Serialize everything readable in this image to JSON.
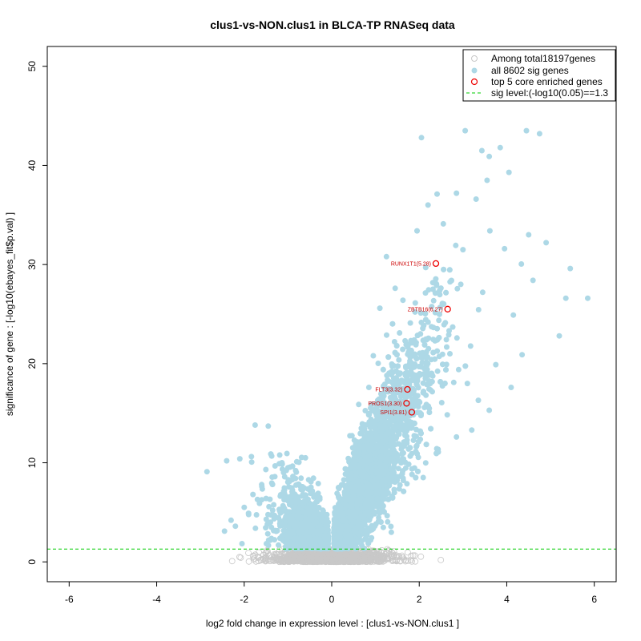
{
  "chart_data": {
    "type": "scatter",
    "title": "clus1-vs-NON.clus1 in BLCA-TP RNASeq data",
    "xlabel": "log2 fold change in expression level : [clus1-vs-NON.clus1 ]",
    "ylabel": "significance of gene : [-log10(ebayes_fit$p.val) ]",
    "xlim": [
      -6.5,
      6.5
    ],
    "ylim": [
      -2,
      52
    ],
    "x_ticks": [
      -6,
      -4,
      -2,
      0,
      2,
      4,
      6
    ],
    "y_ticks": [
      0,
      10,
      20,
      30,
      40,
      50
    ],
    "sig_level": 1.3,
    "legend": {
      "placement": "top-right",
      "entries": [
        {
          "label": "Among total18197genes",
          "marker": "open-circle",
          "color": "#c8c8c8"
        },
        {
          "label": "all 8602 sig genes",
          "marker": "filled-circle",
          "color": "#add8e6"
        },
        {
          "label": "top 5 core enriched genes",
          "marker": "open-circle",
          "color": "#ee0000"
        },
        {
          "label": "sig level:(-log10(0.05)==1.3",
          "marker": "dashed-line",
          "color": "#00cc00"
        }
      ]
    },
    "colors": {
      "nonsig": "#c8c8c8",
      "sig": "#add8e6",
      "core": "#ee0000",
      "threshold": "#00cc00"
    },
    "core_genes": [
      {
        "label": "RUNX1T1(5.28)",
        "x": 2.38,
        "y": 30.1
      },
      {
        "label": "ZBTB16(6.27)",
        "x": 2.65,
        "y": 25.5
      },
      {
        "label": "FLT3(3.32)",
        "x": 1.73,
        "y": 17.4
      },
      {
        "label": "PROS1(3.30)",
        "x": 1.71,
        "y": 16.0
      },
      {
        "label": "SPI1(3.81)",
        "x": 1.83,
        "y": 15.1
      }
    ],
    "sig_points": [
      [
        -2.85,
        9.1
      ],
      [
        -2.4,
        10.2
      ],
      [
        -2.1,
        10.4
      ],
      [
        -1.75,
        13.8
      ],
      [
        -1.45,
        13.7
      ],
      [
        -2.3,
        4.2
      ],
      [
        -2.2,
        3.6
      ],
      [
        -2.0,
        5.5
      ],
      [
        -1.9,
        4.9
      ],
      [
        -1.8,
        6.8
      ],
      [
        -1.6,
        7.8
      ],
      [
        -1.5,
        6.4
      ],
      [
        -1.3,
        8.6
      ],
      [
        -1.2,
        9.9
      ],
      [
        -1.1,
        7.1
      ],
      [
        -1.0,
        9.5
      ],
      [
        -0.9,
        8.3
      ],
      [
        -0.8,
        10.1
      ],
      [
        -0.7,
        7.6
      ],
      [
        -0.6,
        10.5
      ],
      [
        -2.45,
        3.1
      ],
      [
        -1.65,
        5.9
      ],
      [
        -1.35,
        5.2
      ],
      [
        -0.95,
        6.3
      ],
      [
        -0.75,
        5.0
      ],
      [
        4.45,
        43.5
      ],
      [
        4.75,
        43.2
      ],
      [
        3.05,
        43.5
      ],
      [
        2.05,
        42.8
      ],
      [
        3.85,
        41.8
      ],
      [
        3.6,
        40.9
      ],
      [
        4.05,
        39.3
      ],
      [
        3.55,
        38.5
      ],
      [
        3.3,
        36.6
      ],
      [
        2.85,
        37.2
      ],
      [
        4.9,
        32.2
      ],
      [
        5.45,
        29.6
      ],
      [
        5.85,
        26.6
      ],
      [
        5.35,
        26.6
      ],
      [
        5.2,
        22.8
      ],
      [
        4.35,
        20.9
      ],
      [
        4.15,
        24.9
      ],
      [
        4.6,
        28.4
      ],
      [
        3.95,
        31.6
      ],
      [
        4.5,
        33.0
      ],
      [
        2.45,
        22.6
      ],
      [
        2.7,
        21.0
      ],
      [
        2.9,
        19.4
      ],
      [
        3.1,
        18.0
      ],
      [
        3.35,
        16.3
      ],
      [
        3.6,
        15.3
      ],
      [
        3.75,
        19.9
      ],
      [
        4.1,
        17.6
      ],
      [
        3.2,
        13.3
      ],
      [
        2.85,
        12.6
      ],
      [
        1.25,
        30.8
      ],
      [
        1.1,
        25.6
      ],
      [
        0.95,
        20.8
      ],
      [
        0.85,
        17.6
      ],
      [
        0.75,
        13.4
      ],
      [
        0.55,
        10.2
      ],
      [
        0.65,
        12.1
      ],
      [
        1.45,
        27.6
      ],
      [
        1.55,
        23.1
      ],
      [
        1.95,
        33.4
      ],
      [
        2.2,
        36.0
      ],
      [
        2.55,
        34.1
      ],
      [
        2.95,
        28.0
      ],
      [
        3.45,
        27.2
      ],
      [
        3.0,
        31.5
      ]
    ]
  }
}
